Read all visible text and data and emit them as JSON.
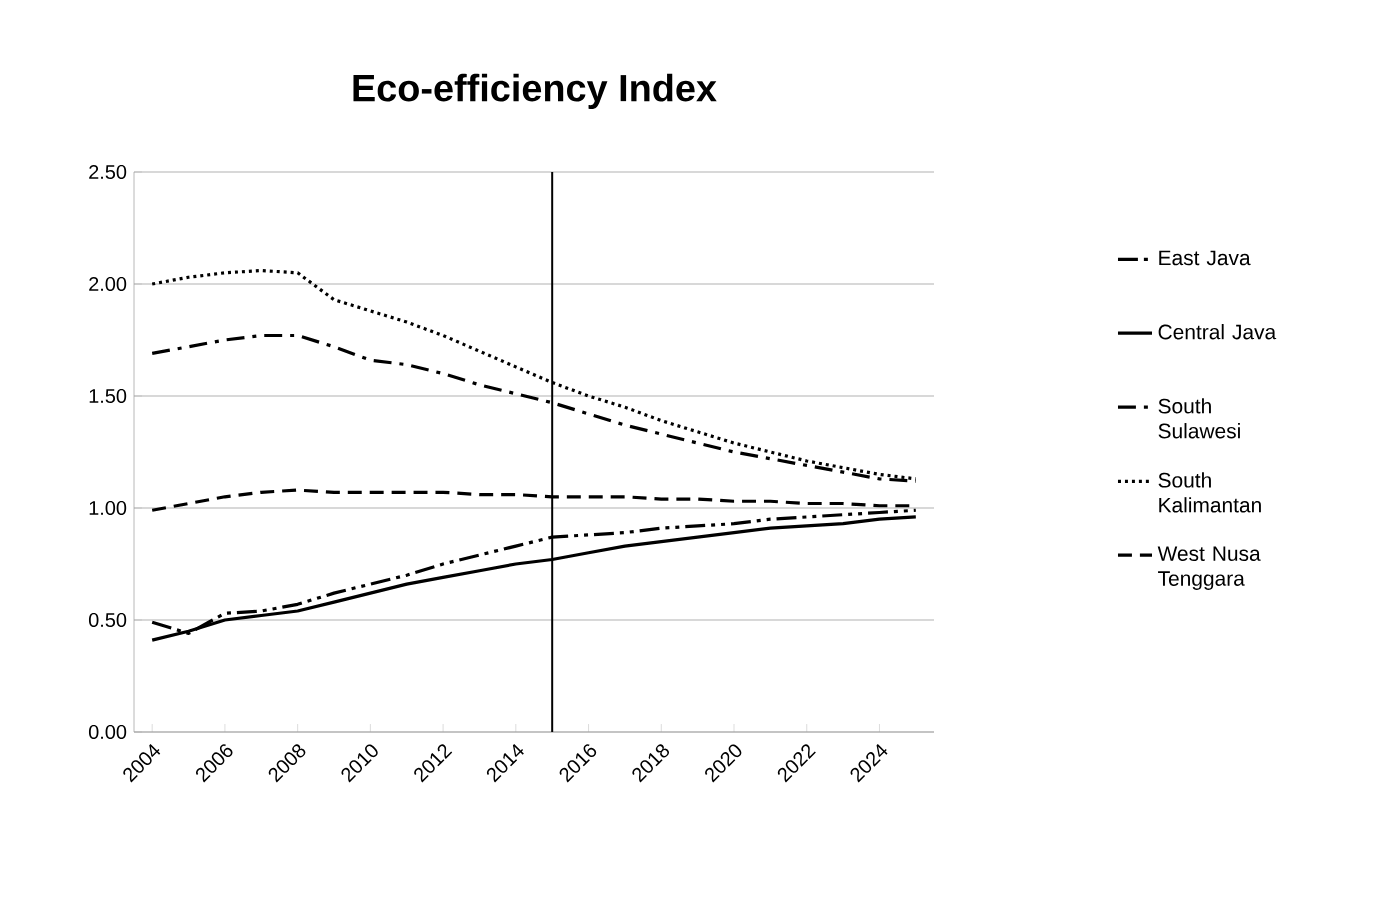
{
  "chart_data": {
    "type": "line",
    "title": "Eco-efficiency Index",
    "x": [
      2004,
      2005,
      2006,
      2007,
      2008,
      2009,
      2010,
      2011,
      2012,
      2013,
      2014,
      2015,
      2016,
      2017,
      2018,
      2019,
      2020,
      2021,
      2022,
      2023,
      2024,
      2025
    ],
    "xlim": [
      2003.5,
      2025.5
    ],
    "xticks": [
      2004,
      2006,
      2008,
      2010,
      2012,
      2014,
      2016,
      2018,
      2020,
      2022,
      2024
    ],
    "ylim": [
      0,
      2.5
    ],
    "yticks": [
      {
        "value": 0,
        "label": "0.00"
      },
      {
        "value": 0.5,
        "label": "0.50"
      },
      {
        "value": 1,
        "label": "1.00"
      },
      {
        "value": 1.5,
        "label": "1.50"
      },
      {
        "value": 2,
        "label": "2.00"
      },
      {
        "value": 2.5,
        "label": "2.50"
      }
    ],
    "grid": "y",
    "legend": "right",
    "marker": "none",
    "ref_lines": [
      {
        "axis": "x",
        "value": 2015,
        "color": "#000000",
        "line_style": "solid"
      }
    ],
    "series": [
      {
        "name": "East Java",
        "color": "#000000",
        "line_style": "dashdotdot",
        "values": [
          0.49,
          0.44,
          0.53,
          0.54,
          0.57,
          0.62,
          0.66,
          0.7,
          0.75,
          0.79,
          0.83,
          0.87,
          0.88,
          0.89,
          0.91,
          0.92,
          0.93,
          0.95,
          0.96,
          0.97,
          0.98,
          0.99
        ]
      },
      {
        "name": "Central Java",
        "color": "#000000",
        "line_style": "solid",
        "values": [
          0.41,
          0.45,
          0.5,
          0.52,
          0.54,
          0.58,
          0.62,
          0.66,
          0.69,
          0.72,
          0.75,
          0.77,
          0.8,
          0.83,
          0.85,
          0.87,
          0.89,
          0.91,
          0.92,
          0.93,
          0.95,
          0.96
        ]
      },
      {
        "name": "South Sulawesi",
        "color": "#000000",
        "line_style": "dashdot",
        "values": [
          1.69,
          1.72,
          1.75,
          1.77,
          1.77,
          1.72,
          1.66,
          1.64,
          1.6,
          1.55,
          1.51,
          1.47,
          1.42,
          1.37,
          1.33,
          1.29,
          1.25,
          1.22,
          1.19,
          1.16,
          1.13,
          1.12
        ]
      },
      {
        "name": "South Kalimantan",
        "color": "#000000",
        "line_style": "dotted",
        "values": [
          2.0,
          2.03,
          2.05,
          2.06,
          2.05,
          1.93,
          1.88,
          1.83,
          1.77,
          1.7,
          1.63,
          1.56,
          1.5,
          1.45,
          1.39,
          1.34,
          1.29,
          1.25,
          1.21,
          1.18,
          1.15,
          1.13
        ]
      },
      {
        "name": "West Nusa Tenggara",
        "color": "#000000",
        "line_style": "dashed",
        "values": [
          0.99,
          1.02,
          1.05,
          1.07,
          1.08,
          1.07,
          1.07,
          1.07,
          1.07,
          1.06,
          1.06,
          1.05,
          1.05,
          1.05,
          1.04,
          1.04,
          1.03,
          1.03,
          1.02,
          1.02,
          1.01,
          1.01
        ]
      }
    ]
  }
}
